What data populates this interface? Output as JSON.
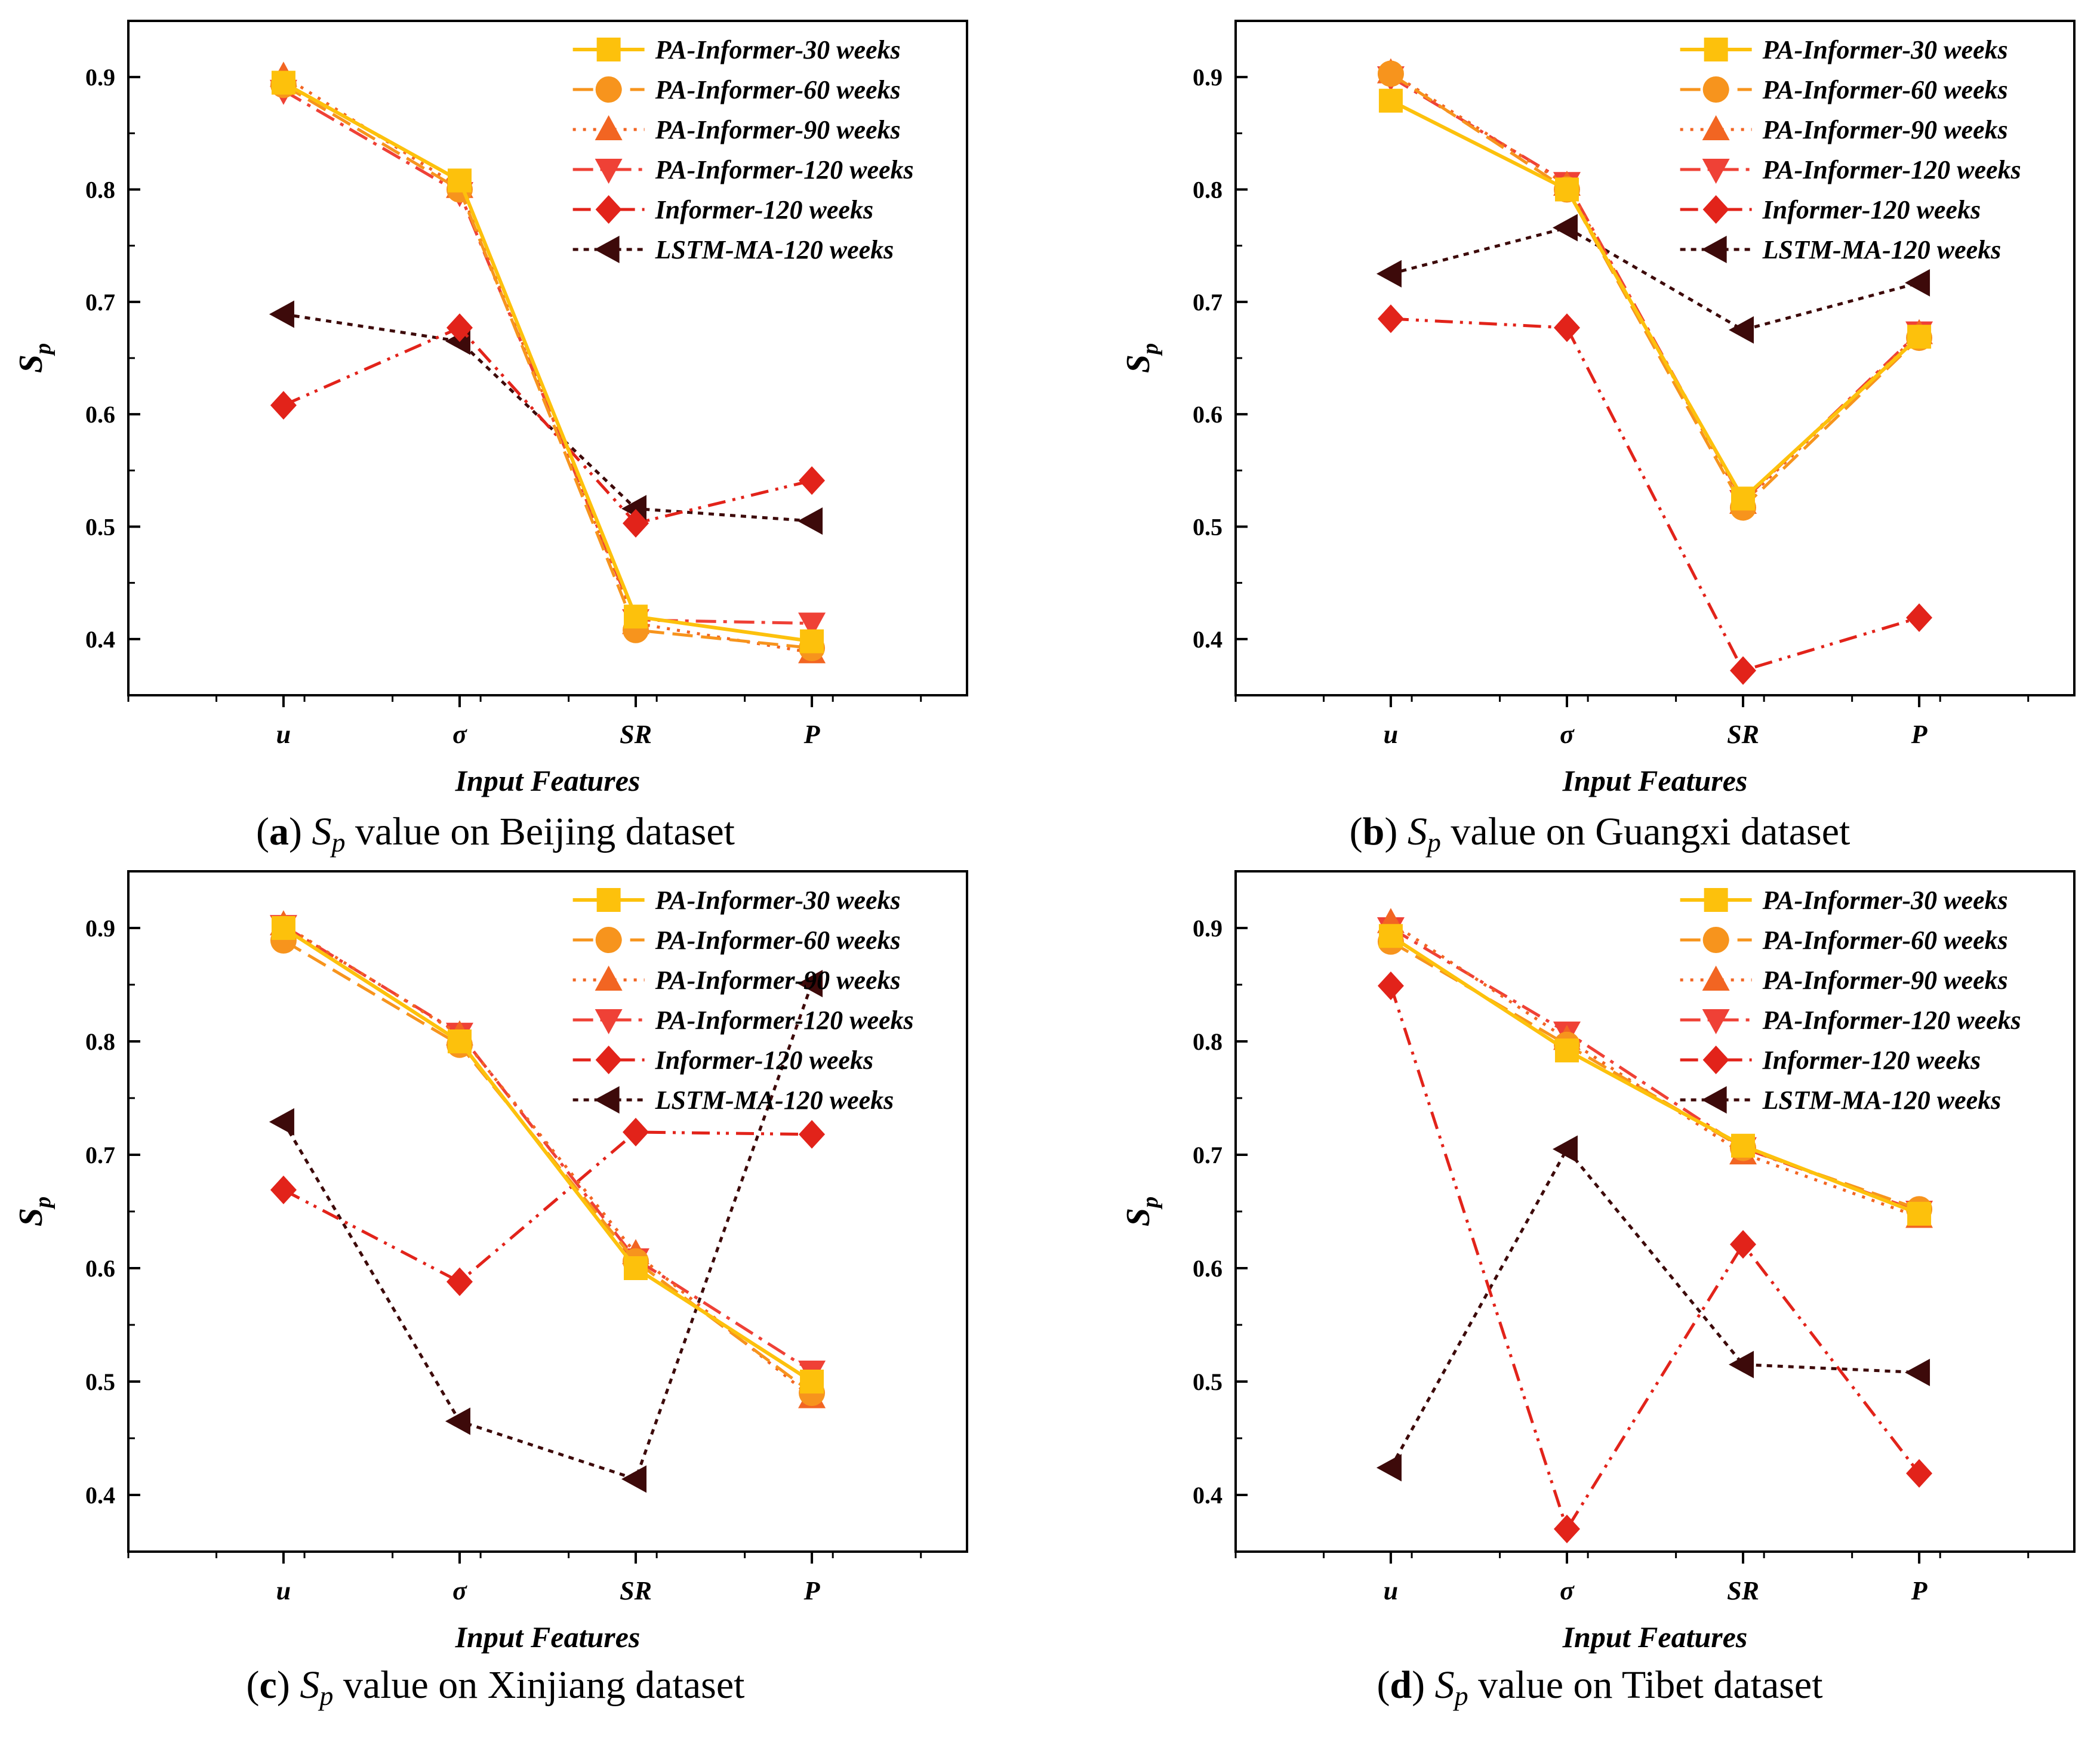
{
  "figure": {
    "caption_symbol": "S",
    "caption_subscript": "p"
  },
  "series_styles": [
    {
      "color": "#FDC10C",
      "dash": "",
      "marker": "square",
      "width": 6
    },
    {
      "color": "#F7941D",
      "dash": "34,14",
      "marker": "circle",
      "width": 5
    },
    {
      "color": "#F26522",
      "dash": "5,12",
      "marker": "triangle-up",
      "width": 5
    },
    {
      "color": "#EF4136",
      "dash": "34,12,6,12",
      "marker": "triangle-down",
      "width": 5
    },
    {
      "color": "#E2231A",
      "dash": "30,12,5,10,5,12",
      "marker": "diamond",
      "width": 5
    },
    {
      "color": "#3D0A0A",
      "dash": "9,9",
      "marker": "triangle-left",
      "width": 5
    }
  ],
  "chart_data": [
    {
      "type": "line",
      "panel": "a",
      "caption_letter": "a",
      "caption_text": "value on Beijing dataset",
      "categories": [
        "u",
        "σ",
        "SR",
        "P"
      ],
      "xlabel": "Input Features",
      "ylabel": "S",
      "ylabel_sub": "p",
      "ylim": [
        0.35,
        0.95
      ],
      "yticks": [
        "0.4",
        "0.5",
        "0.6",
        "0.7",
        "0.8",
        "0.9"
      ],
      "series": [
        {
          "name": "PA-Informer-30 weeks",
          "values": [
            0.895,
            0.808,
            0.42,
            0.398
          ]
        },
        {
          "name": "PA-Informer-60  weeks",
          "values": [
            0.893,
            0.8,
            0.408,
            0.392
          ]
        },
        {
          "name": "PA-Informer-90  weeks",
          "values": [
            0.901,
            0.802,
            0.414,
            0.388
          ]
        },
        {
          "name": "PA-Informer-120  weeks",
          "values": [
            0.888,
            0.797,
            0.417,
            0.414
          ]
        },
        {
          "name": "Informer-120  weeks",
          "values": [
            0.608,
            0.677,
            0.503,
            0.541
          ]
        },
        {
          "name": "LSTM-MA-120  weeks",
          "values": [
            0.689,
            0.665,
            0.516,
            0.505
          ]
        }
      ]
    },
    {
      "type": "line",
      "panel": "b",
      "caption_letter": "b",
      "caption_text": "value on Guangxi dataset",
      "categories": [
        "u",
        "σ",
        "SR",
        "P"
      ],
      "xlabel": "Input Features",
      "ylabel": "S",
      "ylabel_sub": "p",
      "ylim": [
        0.35,
        0.95
      ],
      "yticks": [
        "0.4",
        "0.5",
        "0.6",
        "0.7",
        "0.8",
        "0.9"
      ],
      "series": [
        {
          "name": "PA-Informer-30 weeks",
          "values": [
            0.879,
            0.8,
            0.525,
            0.669
          ]
        },
        {
          "name": "PA-Informer-60  weeks",
          "values": [
            0.903,
            0.8,
            0.517,
            0.668
          ]
        },
        {
          "name": "PA-Informer-90  weeks",
          "values": [
            0.904,
            0.804,
            0.521,
            0.672
          ]
        },
        {
          "name": "PA-Informer-120  weeks",
          "values": [
            0.9,
            0.806,
            0.523,
            0.673
          ]
        },
        {
          "name": "Informer-120  weeks",
          "values": [
            0.685,
            0.677,
            0.372,
            0.419
          ]
        },
        {
          "name": "LSTM-MA-120  weeks",
          "values": [
            0.725,
            0.766,
            0.675,
            0.717
          ]
        }
      ]
    },
    {
      "type": "line",
      "panel": "c",
      "caption_letter": "c",
      "caption_text": "value on Xinjiang dataset",
      "categories": [
        "u",
        "σ",
        "SR",
        "P"
      ],
      "xlabel": "Input Features",
      "ylabel": "S",
      "ylabel_sub": "p",
      "ylim": [
        0.35,
        0.95
      ],
      "yticks": [
        "0.4",
        "0.5",
        "0.6",
        "0.7",
        "0.8",
        "0.9"
      ],
      "series": [
        {
          "name": "PA-Informer-30 weeks",
          "values": [
            0.9,
            0.8,
            0.6,
            0.5
          ]
        },
        {
          "name": "PA-Informer-60  weeks",
          "values": [
            0.889,
            0.797,
            0.606,
            0.49
          ]
        },
        {
          "name": "PA-Informer-90  weeks",
          "values": [
            0.903,
            0.806,
            0.613,
            0.486
          ]
        },
        {
          "name": "PA-Informer-120  weeks",
          "values": [
            0.902,
            0.807,
            0.608,
            0.509
          ]
        },
        {
          "name": "Informer-120  weeks",
          "values": [
            0.669,
            0.588,
            0.72,
            0.718
          ]
        },
        {
          "name": "LSTM-MA-120  weeks",
          "values": [
            0.729,
            0.465,
            0.414,
            0.851
          ]
        }
      ]
    },
    {
      "type": "line",
      "panel": "d",
      "caption_letter": "d",
      "caption_text": "value on Tibet dataset",
      "categories": [
        "u",
        "σ",
        "SR",
        "P"
      ],
      "xlabel": "Input Features",
      "ylabel": "S",
      "ylabel_sub": "p",
      "ylim": [
        0.35,
        0.95
      ],
      "yticks": [
        "0.4",
        "0.5",
        "0.6",
        "0.7",
        "0.8",
        "0.9"
      ],
      "series": [
        {
          "name": "PA-Informer-30 weeks",
          "values": [
            0.893,
            0.792,
            0.708,
            0.648
          ]
        },
        {
          "name": "PA-Informer-60  weeks",
          "values": [
            0.888,
            0.797,
            0.706,
            0.652
          ]
        },
        {
          "name": "PA-Informer-90  weeks",
          "values": [
            0.905,
            0.802,
            0.701,
            0.645
          ]
        },
        {
          "name": "PA-Informer-120  weeks",
          "values": [
            0.9,
            0.808,
            0.706,
            0.65
          ]
        },
        {
          "name": "Informer-120  weeks",
          "values": [
            0.849,
            0.37,
            0.621,
            0.419
          ]
        },
        {
          "name": "LSTM-MA-120  weeks",
          "values": [
            0.424,
            0.705,
            0.515,
            0.508
          ]
        }
      ]
    }
  ]
}
